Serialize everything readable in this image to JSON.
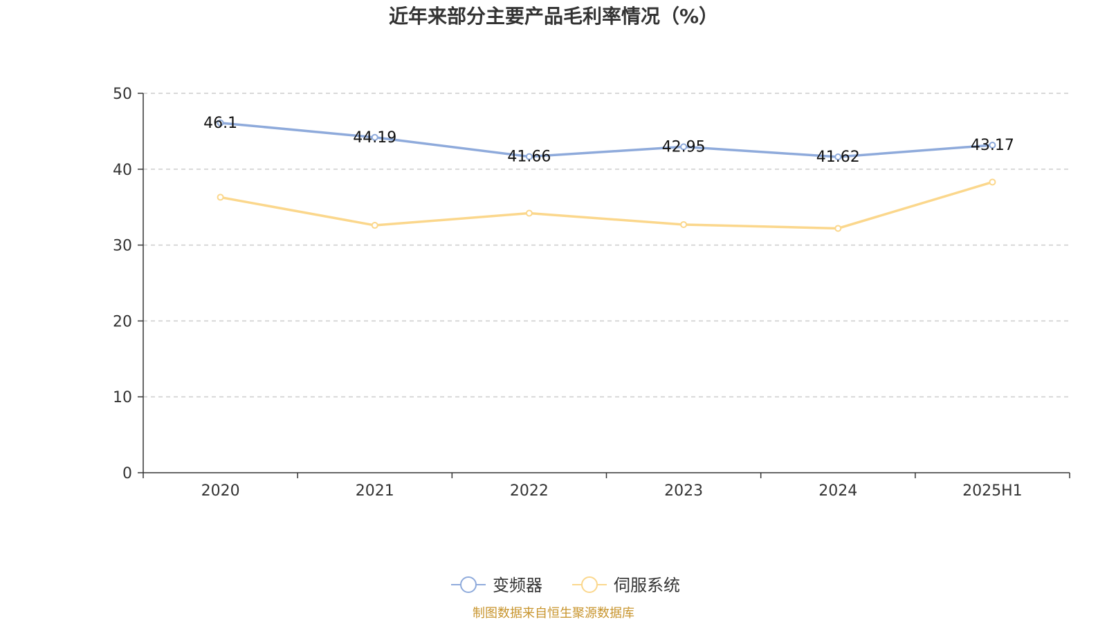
{
  "chart_data": {
    "type": "line",
    "title": "近年来部分主要产品毛利率情况（%）",
    "categories": [
      "2020",
      "2021",
      "2022",
      "2023",
      "2024",
      "2025H1"
    ],
    "ylim": [
      0,
      50
    ],
    "yticks": [
      0,
      10,
      20,
      30,
      40,
      50
    ],
    "grid": true,
    "legend_position": "bottom-center",
    "series": [
      {
        "name": "变频器",
        "color": "#8eaadb",
        "values": [
          46.1,
          44.19,
          41.66,
          42.95,
          41.62,
          43.17
        ],
        "data_labels": [
          "46.1",
          "44.19",
          "41.66",
          "42.95",
          "41.62",
          "43.17"
        ]
      },
      {
        "name": "伺服系统",
        "color": "#fbd78c",
        "values": [
          36.3,
          32.6,
          34.2,
          32.7,
          32.2,
          38.3
        ],
        "data_labels": []
      }
    ],
    "source": "制图数据来自恒生聚源数据库"
  }
}
